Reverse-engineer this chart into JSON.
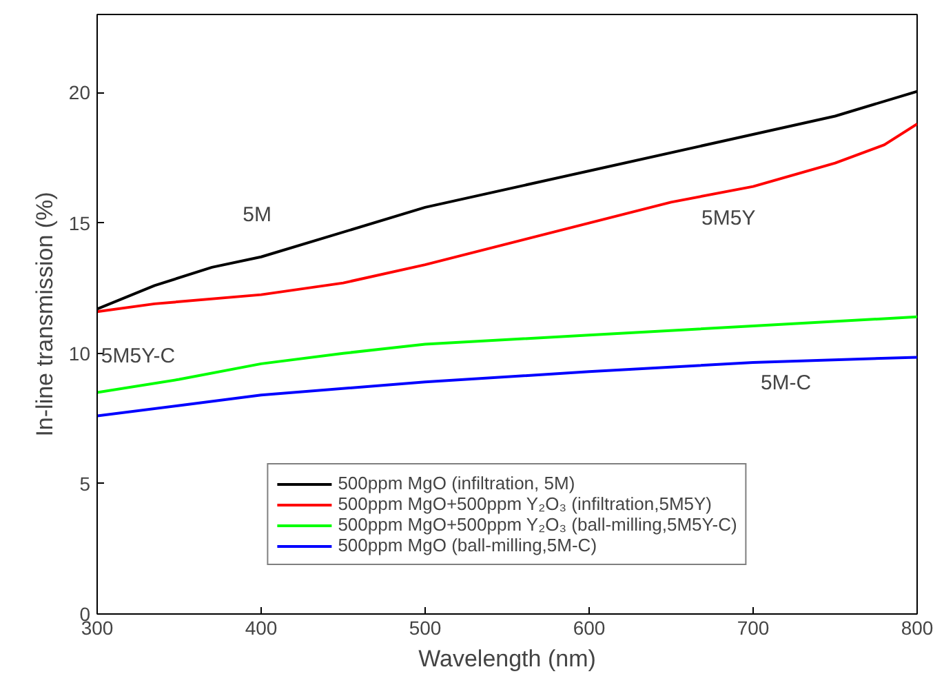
{
  "chart_data": {
    "type": "line",
    "xlabel": "Wavelength (nm)",
    "ylabel": "In-line transmission (%)",
    "xlim": [
      300,
      800
    ],
    "ylim": [
      0,
      23
    ],
    "xticks": [
      300,
      400,
      500,
      600,
      700,
      800
    ],
    "yticks": [
      0,
      5,
      10,
      15,
      20
    ],
    "grid": false,
    "legend": "bottom",
    "line_style": "solid",
    "marker": "none",
    "series": [
      {
        "name": "500ppm MgO (infiltration, 5M)",
        "color": "#000000",
        "x": [
          300,
          335,
          370,
          400,
          500,
          600,
          700,
          750,
          800
        ],
        "values": [
          11.7,
          12.6,
          13.3,
          13.7,
          15.6,
          17.0,
          18.4,
          19.1,
          20.05
        ]
      },
      {
        "name": "500ppm MgO+500ppm Y₂O₃ (infiltration,5M5Y)",
        "color": "#ff0000",
        "x": [
          300,
          335,
          400,
          450,
          500,
          550,
          600,
          650,
          700,
          750,
          780,
          800
        ],
        "values": [
          11.6,
          11.9,
          12.25,
          12.7,
          13.4,
          14.2,
          15.0,
          15.8,
          16.4,
          17.3,
          18.0,
          18.8
        ]
      },
      {
        "name": "500ppm MgO+500ppm Y₂O₃ (ball-milling,5M5Y-C)",
        "color": "#00ff00",
        "x": [
          300,
          350,
          400,
          450,
          500,
          600,
          700,
          800
        ],
        "values": [
          8.5,
          9.0,
          9.6,
          10.0,
          10.35,
          10.7,
          11.05,
          11.4
        ]
      },
      {
        "name": "500ppm MgO (ball-milling,5M-C)",
        "color": "#0000ff",
        "x": [
          300,
          350,
          400,
          500,
          600,
          700,
          800
        ],
        "values": [
          7.6,
          8.0,
          8.4,
          8.9,
          9.3,
          9.65,
          9.85
        ]
      }
    ],
    "annotations": [
      "5M",
      "5M5Y",
      "5M5Y-C",
      "5M-C"
    ]
  }
}
